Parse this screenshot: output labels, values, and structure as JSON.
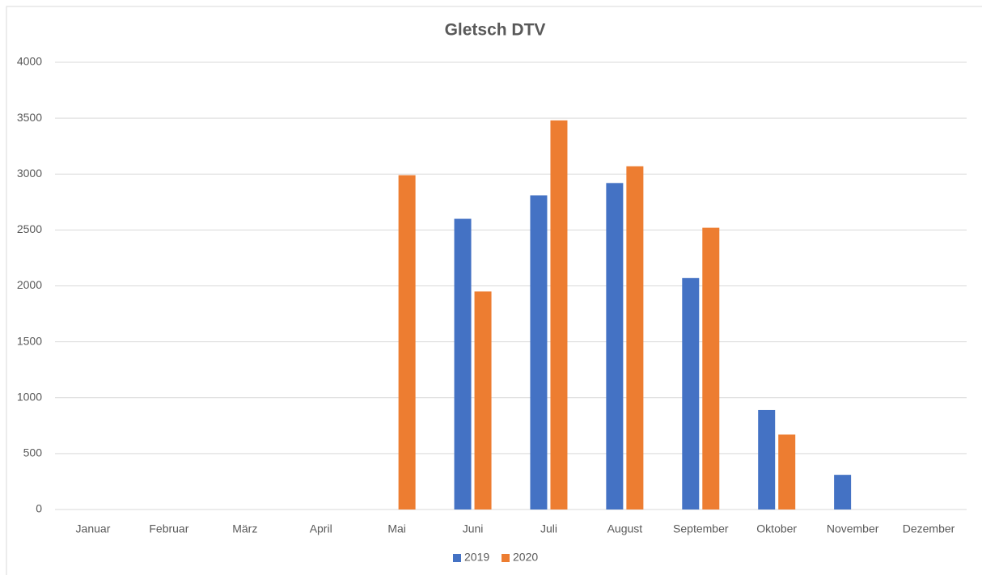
{
  "chart_data": {
    "type": "bar",
    "title": "Gletsch DTV",
    "categories": [
      "Januar",
      "Februar",
      "März",
      "April",
      "Mai",
      "Juni",
      "Juli",
      "August",
      "September",
      "Oktober",
      "November",
      "Dezember"
    ],
    "series": [
      {
        "name": "2019",
        "color": "#4472c4",
        "values": [
          null,
          null,
          null,
          null,
          null,
          2600,
          2810,
          2920,
          2070,
          890,
          310,
          null
        ]
      },
      {
        "name": "2020",
        "color": "#ed7d31",
        "values": [
          null,
          null,
          null,
          null,
          2990,
          1950,
          3480,
          3070,
          2520,
          670,
          null,
          null
        ]
      }
    ],
    "ylim": [
      0,
      4000
    ],
    "yticks": [
      0,
      500,
      1000,
      1500,
      2000,
      2500,
      3000,
      3500,
      4000
    ],
    "grid": true,
    "legend": "bottom"
  }
}
